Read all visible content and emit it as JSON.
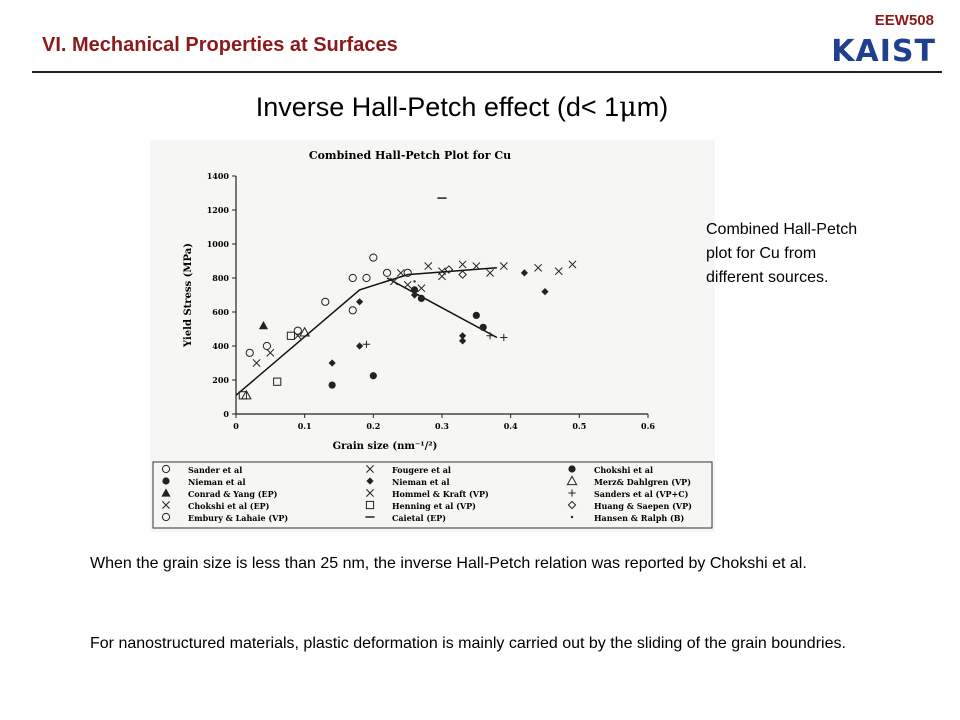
{
  "header": {
    "course_code": "EEW508",
    "logo_text": "KAIST",
    "section_title": "VI. Mechanical Properties at Surfaces"
  },
  "slide": {
    "title_prefix": "Inverse Hall-Petch effect (d< 1",
    "title_mu": "μ",
    "title_suffix": "m)",
    "caption": "Combined Hall-Petch plot for Cu from different sources.",
    "paragraph1": "When the grain size is less than 25 nm, the inverse Hall-Petch relation was reported by Chokshi et al.",
    "paragraph2": "For nanostructured materials, plastic deformation is mainly carried out by the sliding of the grain boundries."
  },
  "chart_data": {
    "type": "scatter",
    "title": "Combined Hall-Petch Plot for Cu",
    "xlabel": "Grain size (nm⁻¹/²)",
    "ylabel": "Yield Stress (MPa)",
    "xlim": [
      0,
      0.6
    ],
    "ylim": [
      0,
      1400
    ],
    "x_ticks": [
      0,
      0.1,
      0.2,
      0.3,
      0.4,
      0.5,
      0.6
    ],
    "x_tick_labels": [
      "0",
      "0.1",
      "0.2",
      "0.3",
      "0.4",
      "0.5",
      "0.6"
    ],
    "y_ticks": [
      0,
      200,
      400,
      600,
      800,
      1000,
      1200,
      1400
    ],
    "y_tick_labels": [
      "0",
      "200",
      "400",
      "600",
      "800",
      "1000",
      "1200",
      "1400"
    ],
    "grid": false,
    "legend_position": "bottom",
    "trend_lines": [
      {
        "points": [
          [
            0,
            110
          ],
          [
            0.18,
            730
          ],
          [
            0.25,
            820
          ],
          [
            0.38,
            860
          ]
        ]
      },
      {
        "points": [
          [
            0.22,
            800
          ],
          [
            0.27,
            690
          ],
          [
            0.38,
            450
          ]
        ]
      }
    ],
    "series": [
      {
        "name": "Sander et al",
        "marker": "open-circle",
        "points": [
          [
            0.2,
            920
          ],
          [
            0.19,
            800
          ],
          [
            0.17,
            800
          ],
          [
            0.13,
            660
          ],
          [
            0.17,
            610
          ],
          [
            0.22,
            830
          ],
          [
            0.25,
            830
          ]
        ]
      },
      {
        "name": "Nieman et al",
        "marker": "filled-circle",
        "points": [
          [
            0.14,
            170
          ],
          [
            0.2,
            225
          ]
        ]
      },
      {
        "name": "Conrad & Yang (EP)",
        "marker": "filled-triangle",
        "points": [
          [
            0.04,
            520
          ]
        ]
      },
      {
        "name": "Chokshi et al (EP)",
        "marker": "x",
        "points": [
          [
            0.03,
            300
          ],
          [
            0.05,
            360
          ],
          [
            0.09,
            460
          ]
        ]
      },
      {
        "name": "Embury & Lahaie (VP)",
        "marker": "open-circle",
        "points": [
          [
            0.045,
            400
          ],
          [
            0.02,
            360
          ],
          [
            0.09,
            490
          ]
        ]
      },
      {
        "name": "Fougere et al",
        "marker": "x",
        "points": [
          [
            0.24,
            830
          ],
          [
            0.28,
            870
          ],
          [
            0.3,
            840
          ],
          [
            0.33,
            880
          ],
          [
            0.35,
            870
          ],
          [
            0.37,
            830
          ],
          [
            0.39,
            870
          ],
          [
            0.44,
            860
          ],
          [
            0.47,
            840
          ],
          [
            0.49,
            880
          ]
        ]
      },
      {
        "name": "Nieman et al",
        "marker": "filled-diamond",
        "points": [
          [
            0.18,
            400
          ],
          [
            0.14,
            300
          ],
          [
            0.33,
            460
          ],
          [
            0.33,
            430
          ],
          [
            0.26,
            700
          ],
          [
            0.42,
            830
          ],
          [
            0.45,
            720
          ],
          [
            0.18,
            660
          ]
        ]
      },
      {
        "name": "Hommel & Kraft (VP)",
        "marker": "x",
        "points": [
          [
            0.23,
            780
          ],
          [
            0.25,
            760
          ],
          [
            0.27,
            740
          ],
          [
            0.3,
            810
          ]
        ]
      },
      {
        "name": "Henning et al (VP)",
        "marker": "open-square",
        "points": [
          [
            0.06,
            190
          ],
          [
            0.08,
            460
          ],
          [
            0.01,
            110
          ]
        ]
      },
      {
        "name": "Caietal (EP)",
        "marker": "dash",
        "points": [
          [
            0.3,
            1270
          ]
        ]
      },
      {
        "name": "Chokshi et al",
        "marker": "filled-circle",
        "points": [
          [
            0.27,
            680
          ],
          [
            0.35,
            580
          ],
          [
            0.36,
            510
          ],
          [
            0.26,
            730
          ]
        ]
      },
      {
        "name": "Merz& Dahlgren (VP)",
        "marker": "open-triangle",
        "points": [
          [
            0.015,
            110
          ],
          [
            0.1,
            480
          ]
        ]
      },
      {
        "name": "Sanders et al (VP+C)",
        "marker": "plus",
        "points": [
          [
            0.19,
            410
          ],
          [
            0.37,
            460
          ],
          [
            0.39,
            450
          ]
        ]
      },
      {
        "name": "Huang & Saepen (VP)",
        "marker": "open-diamond",
        "points": [
          [
            0.33,
            820
          ],
          [
            0.31,
            850
          ]
        ]
      },
      {
        "name": "Hansen & Ralph (B)",
        "marker": "dot",
        "points": [
          [
            0.26,
            780
          ]
        ]
      }
    ]
  }
}
